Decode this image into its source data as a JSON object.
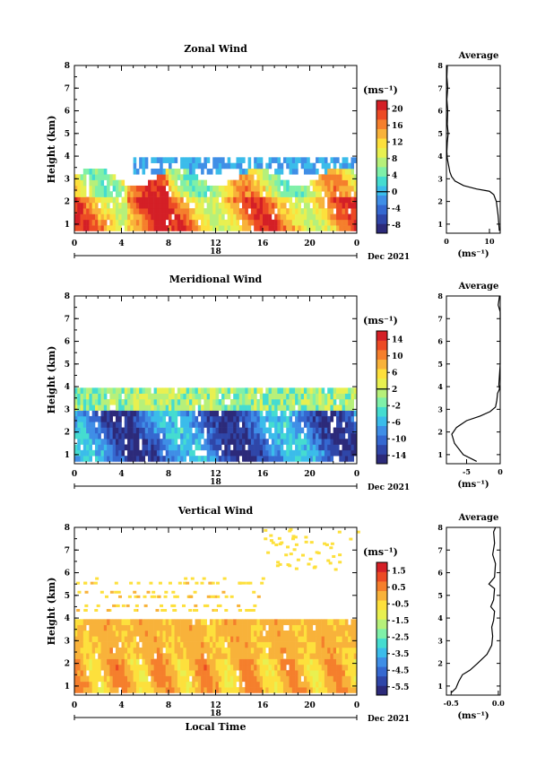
{
  "chart_data": [
    {
      "type": "heatmap",
      "title": "Zonal Wind",
      "ylabel": "Height (km)",
      "yticks": [
        "1",
        "2",
        "3",
        "4",
        "5",
        "6",
        "7",
        "8"
      ],
      "ylim": [
        0.6,
        8
      ],
      "xticks": [
        "0",
        "4",
        "8",
        "12",
        "16",
        "20",
        "0"
      ],
      "xlim": [
        0,
        24
      ],
      "date_label": "18",
      "date_right": "Dec 2021",
      "colorbar": {
        "unit": "(ms⁻¹)",
        "ticks": [
          "20",
          "16",
          "12",
          "8",
          "4",
          "0",
          "-4",
          "-8"
        ],
        "range": [
          -10,
          22
        ],
        "zero_tick": "0"
      },
      "data_extent": {
        "low_km": 0.7,
        "high_km": 3.9
      },
      "profile": {
        "title": "Average",
        "xticks": [
          "0",
          "10"
        ],
        "xlim": [
          0,
          12.5
        ],
        "xlabel": "(ms⁻¹)",
        "points": [
          [
            12.3,
            0.7
          ],
          [
            12.0,
            1.4
          ],
          [
            11.6,
            2.0
          ],
          [
            11.0,
            2.3
          ],
          [
            10.0,
            2.45
          ],
          [
            7.0,
            2.55
          ],
          [
            4.0,
            2.7
          ],
          [
            2.0,
            2.9
          ],
          [
            1.2,
            3.1
          ],
          [
            0.8,
            3.3
          ],
          [
            0.5,
            3.6
          ],
          [
            0.2,
            3.9
          ],
          [
            0.1,
            4.2
          ],
          [
            0.2,
            4.6
          ],
          [
            0.4,
            5.0
          ],
          [
            0.2,
            5.4
          ],
          [
            0.3,
            6.0
          ],
          [
            0.1,
            6.5
          ],
          [
            0.3,
            7.0
          ],
          [
            0.1,
            7.5
          ],
          [
            0.2,
            8.0
          ]
        ]
      }
    },
    {
      "type": "heatmap",
      "title": "Meridional Wind",
      "ylabel": "Height (km)",
      "yticks": [
        "1",
        "2",
        "3",
        "4",
        "5",
        "6",
        "7",
        "8"
      ],
      "ylim": [
        0.6,
        8
      ],
      "xticks": [
        "0",
        "4",
        "8",
        "12",
        "16",
        "20",
        "0"
      ],
      "xlim": [
        0,
        24
      ],
      "date_label": "18",
      "date_right": "Dec 2021",
      "colorbar": {
        "unit": "(ms⁻¹)",
        "ticks": [
          "14",
          "10",
          "6",
          "2",
          "-2",
          "-6",
          "-10",
          "-14"
        ],
        "range": [
          -16,
          16
        ],
        "zero_tick": "2"
      },
      "data_extent": {
        "low_km": 0.7,
        "high_km": 3.9
      },
      "profile": {
        "title": "Average",
        "xticks": [
          "-5",
          "0"
        ],
        "xlim": [
          -8,
          0
        ],
        "xlabel": "(ms⁻¹)",
        "points": [
          [
            -3.5,
            0.7
          ],
          [
            -5.5,
            1.0
          ],
          [
            -6.8,
            1.5
          ],
          [
            -7.2,
            1.9
          ],
          [
            -6.5,
            2.2
          ],
          [
            -5.0,
            2.5
          ],
          [
            -3.0,
            2.7
          ],
          [
            -1.5,
            2.9
          ],
          [
            -0.7,
            3.1
          ],
          [
            -0.5,
            3.4
          ],
          [
            -0.4,
            3.7
          ],
          [
            -0.1,
            3.9
          ],
          [
            -0.2,
            4.1
          ],
          [
            0.0,
            5.0
          ],
          [
            0.0,
            7.3
          ],
          [
            -0.3,
            7.6
          ],
          [
            -0.1,
            8.0
          ]
        ]
      }
    },
    {
      "type": "heatmap",
      "title": "Vertical Wind",
      "ylabel": "Height (km)",
      "yticks": [
        "1",
        "2",
        "3",
        "4",
        "5",
        "6",
        "7",
        "8"
      ],
      "ylim": [
        0.6,
        8
      ],
      "xticks": [
        "0",
        "4",
        "8",
        "12",
        "16",
        "20",
        "0"
      ],
      "xlim": [
        0,
        24
      ],
      "xlabel": "Local Time",
      "date_label": "18",
      "date_right": "Dec 2021",
      "colorbar": {
        "unit": "(ms⁻¹)",
        "ticks": [
          "1.5",
          "0.5",
          "-0.5",
          "-1.5",
          "-2.5",
          "-3.5",
          "-4.5",
          "-5.5"
        ],
        "range": [
          -6,
          2
        ]
      },
      "data_extent": {
        "low_km": 0.7,
        "high_km": 3.9
      },
      "profile": {
        "title": "Average",
        "xticks": [
          "-0.5",
          "0.0"
        ],
        "xlim": [
          -0.55,
          0.02
        ],
        "xlabel": "(ms⁻¹)",
        "points": [
          [
            -0.5,
            0.7
          ],
          [
            -0.45,
            0.9
          ],
          [
            -0.42,
            1.2
          ],
          [
            -0.38,
            1.5
          ],
          [
            -0.3,
            1.7
          ],
          [
            -0.22,
            2.0
          ],
          [
            -0.12,
            2.4
          ],
          [
            -0.07,
            2.8
          ],
          [
            -0.06,
            3.2
          ],
          [
            -0.07,
            3.6
          ],
          [
            -0.05,
            3.9
          ],
          [
            -0.04,
            4.3
          ],
          [
            -0.08,
            4.5
          ],
          [
            -0.05,
            4.8
          ],
          [
            -0.04,
            5.3
          ],
          [
            -0.1,
            5.5
          ],
          [
            -0.04,
            5.8
          ],
          [
            -0.03,
            6.4
          ],
          [
            -0.06,
            6.8
          ],
          [
            -0.04,
            7.3
          ],
          [
            -0.05,
            7.8
          ],
          [
            -0.03,
            8.0
          ]
        ]
      }
    }
  ]
}
